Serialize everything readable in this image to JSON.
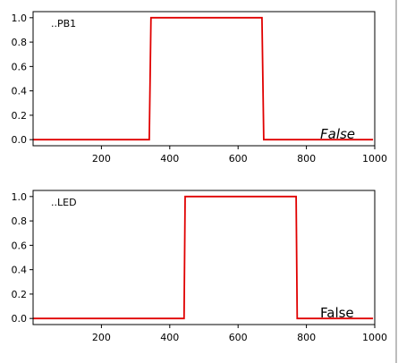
{
  "chart_data": [
    {
      "type": "line",
      "name": "..PB1",
      "status": "False",
      "status_style": "italic",
      "x": [
        0,
        340,
        345,
        670,
        675,
        995
      ],
      "y": [
        0,
        0,
        1,
        1,
        0,
        0
      ],
      "xlim": [
        0,
        1000
      ],
      "ylim": [
        -0.05,
        1.05
      ],
      "xticks": [
        200,
        400,
        600,
        800,
        1000
      ],
      "yticks": [
        0.0,
        0.2,
        0.4,
        0.6,
        0.8,
        1.0
      ],
      "grid": false,
      "line_color": "#e00000"
    },
    {
      "type": "line",
      "name": "..LED",
      "status": "False",
      "status_style": "normal",
      "x": [
        0,
        442,
        445,
        770,
        773,
        995
      ],
      "y": [
        0,
        0,
        1,
        1,
        0,
        0
      ],
      "xlim": [
        0,
        1000
      ],
      "ylim": [
        -0.05,
        1.05
      ],
      "xticks": [
        200,
        400,
        600,
        800,
        1000
      ],
      "yticks": [
        0.0,
        0.2,
        0.4,
        0.6,
        0.8,
        1.0
      ],
      "grid": false,
      "line_color": "#e00000"
    }
  ]
}
